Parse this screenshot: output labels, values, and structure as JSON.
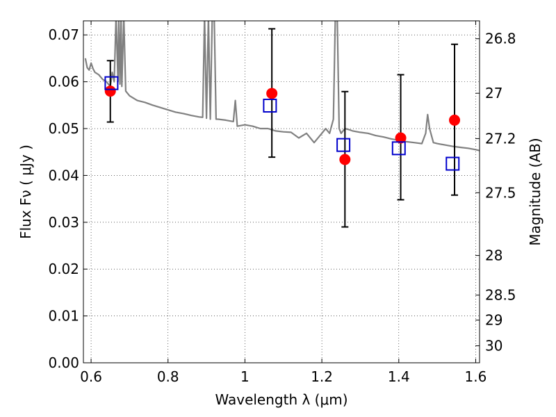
{
  "chart_data": {
    "type": "scatter",
    "xlabel": "Wavelength  λ (μm)",
    "ylabel_left": "Flux  Fν  ( μJy )",
    "ylabel_right": "Magnitude (AB)",
    "xlim": [
      0.58,
      1.61
    ],
    "ylim": [
      0.0,
      0.073
    ],
    "grid": true,
    "x_ticks": [
      {
        "value": 0.6,
        "label": "0.6"
      },
      {
        "value": 0.8,
        "label": "0.8"
      },
      {
        "value": 1.0,
        "label": "1"
      },
      {
        "value": 1.2,
        "label": "1.2"
      },
      {
        "value": 1.4,
        "label": "1.4"
      },
      {
        "value": 1.6,
        "label": "1.6"
      }
    ],
    "y_ticks": [
      {
        "value": 0.0,
        "label": "0.00"
      },
      {
        "value": 0.01,
        "label": "0.01"
      },
      {
        "value": 0.02,
        "label": "0.02"
      },
      {
        "value": 0.03,
        "label": "0.03"
      },
      {
        "value": 0.04,
        "label": "0.04"
      },
      {
        "value": 0.05,
        "label": "0.05"
      },
      {
        "value": 0.06,
        "label": "0.06"
      },
      {
        "value": 0.07,
        "label": "0.07"
      }
    ],
    "right_ticks": [
      {
        "value": 26.8,
        "label": "26.8"
      },
      {
        "value": 27.0,
        "label": "27"
      },
      {
        "value": 27.2,
        "label": "27.2"
      },
      {
        "value": 27.5,
        "label": "27.5"
      },
      {
        "value": 28.0,
        "label": "28"
      },
      {
        "value": 28.5,
        "label": "28.5"
      },
      {
        "value": 29.0,
        "label": "29"
      },
      {
        "value": 30.0,
        "label": "30"
      }
    ],
    "observed": {
      "color": "#ff0000",
      "points": [
        {
          "x": 0.65,
          "y": 0.058,
          "err_low": 0.0514,
          "err_high": 0.0645
        },
        {
          "x": 1.07,
          "y": 0.0575,
          "err_low": 0.0439,
          "err_high": 0.0713
        },
        {
          "x": 1.26,
          "y": 0.0434,
          "err_low": 0.029,
          "err_high": 0.0579
        },
        {
          "x": 1.405,
          "y": 0.048,
          "err_low": 0.0348,
          "err_high": 0.0615
        },
        {
          "x": 1.545,
          "y": 0.0518,
          "err_low": 0.0358,
          "err_high": 0.068
        }
      ]
    },
    "model_bands": {
      "color": "#0000cc",
      "points": [
        {
          "x": 0.653,
          "y": 0.0597
        },
        {
          "x": 1.065,
          "y": 0.0549
        },
        {
          "x": 1.256,
          "y": 0.0465
        },
        {
          "x": 1.4,
          "y": 0.0458
        },
        {
          "x": 1.54,
          "y": 0.0425
        }
      ]
    },
    "spectrum": {
      "color": "#808080",
      "x": [
        0.585,
        0.59,
        0.595,
        0.6,
        0.605,
        0.61,
        0.62,
        0.63,
        0.64,
        0.65,
        0.655,
        0.66,
        0.665,
        0.67,
        0.672,
        0.675,
        0.678,
        0.68,
        0.685,
        0.69,
        0.7,
        0.72,
        0.74,
        0.76,
        0.78,
        0.8,
        0.82,
        0.84,
        0.86,
        0.88,
        0.89,
        0.895,
        0.9,
        0.905,
        0.91,
        0.915,
        0.92,
        0.925,
        0.93,
        0.95,
        0.97,
        0.975,
        0.98,
        1.0,
        1.02,
        1.04,
        1.06,
        1.08,
        1.1,
        1.12,
        1.14,
        1.16,
        1.18,
        1.2,
        1.21,
        1.22,
        1.23,
        1.235,
        1.24,
        1.245,
        1.25,
        1.26,
        1.27,
        1.28,
        1.3,
        1.32,
        1.34,
        1.36,
        1.38,
        1.4,
        1.42,
        1.44,
        1.46,
        1.47,
        1.475,
        1.48,
        1.49,
        1.5,
        1.52,
        1.54,
        1.56,
        1.58,
        1.6,
        1.61
      ],
      "y": [
        0.065,
        0.063,
        0.0625,
        0.064,
        0.0628,
        0.062,
        0.0615,
        0.0605,
        0.06,
        0.059,
        0.062,
        0.06,
        0.074,
        0.06,
        0.074,
        0.0595,
        0.074,
        0.059,
        0.074,
        0.058,
        0.057,
        0.056,
        0.0556,
        0.055,
        0.0545,
        0.054,
        0.0535,
        0.0532,
        0.0528,
        0.0525,
        0.0524,
        0.074,
        0.0522,
        0.074,
        0.052,
        0.074,
        0.074,
        0.052,
        0.052,
        0.0518,
        0.0515,
        0.056,
        0.0505,
        0.0508,
        0.0505,
        0.05,
        0.05,
        0.0495,
        0.0493,
        0.0492,
        0.048,
        0.049,
        0.047,
        0.049,
        0.05,
        0.049,
        0.052,
        0.074,
        0.074,
        0.05,
        0.049,
        0.05,
        0.0498,
        0.0495,
        0.0492,
        0.049,
        0.0485,
        0.0482,
        0.0478,
        0.0475,
        0.0472,
        0.047,
        0.0468,
        0.049,
        0.053,
        0.05,
        0.047,
        0.0468,
        0.0465,
        0.0462,
        0.046,
        0.0458,
        0.0455,
        0.0453
      ]
    }
  }
}
